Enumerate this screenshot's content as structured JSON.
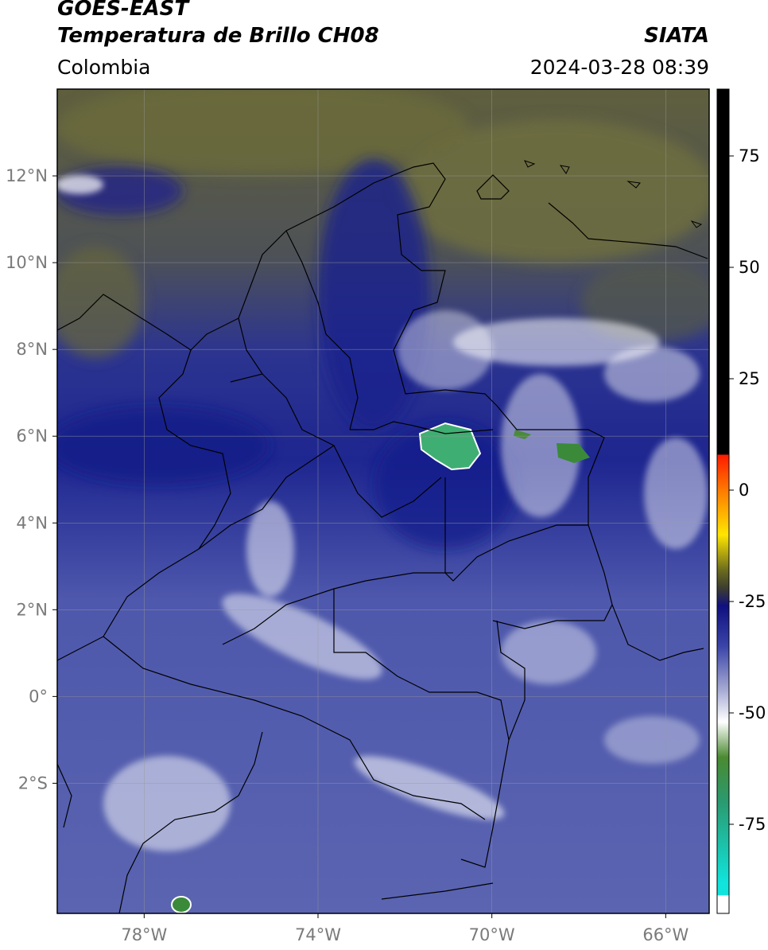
{
  "header": {
    "satellite": "GOES-EAST",
    "product": "Temperatura de Brillo CH08",
    "brand": "SIATA",
    "region": "Colombia",
    "timestamp": "2024-03-28 08:39"
  },
  "map": {
    "lon_range": [
      -80,
      -65
    ],
    "lat_range": [
      -5,
      14
    ],
    "lat_ticks": [
      {
        "value": 12,
        "label": "12°N"
      },
      {
        "value": 10,
        "label": "10°N"
      },
      {
        "value": 8,
        "label": "8°N"
      },
      {
        "value": 6,
        "label": "6°N"
      },
      {
        "value": 4,
        "label": "4°N"
      },
      {
        "value": 2,
        "label": "2°N"
      },
      {
        "value": 0,
        "label": "0°"
      },
      {
        "value": -2,
        "label": "2°S"
      }
    ],
    "lon_ticks": [
      {
        "value": -78,
        "label": "78°W"
      },
      {
        "value": -74,
        "label": "74°W"
      },
      {
        "value": -70,
        "label": "70°W"
      },
      {
        "value": -66,
        "label": "66°W"
      }
    ],
    "grid": true
  },
  "colorbar": {
    "range": [
      -95,
      90
    ],
    "ticks": [
      {
        "value": 75,
        "label": "75"
      },
      {
        "value": 50,
        "label": "50"
      },
      {
        "value": 25,
        "label": "25"
      },
      {
        "value": 0,
        "label": "0"
      },
      {
        "value": -25,
        "label": "-25"
      },
      {
        "value": -50,
        "label": "-50"
      },
      {
        "value": -75,
        "label": "-75"
      }
    ],
    "stops": [
      {
        "value": 90,
        "color": "#000000"
      },
      {
        "value": 8,
        "color": "#000000"
      },
      {
        "value": 7.9,
        "color": "#ff1a00"
      },
      {
        "value": 0,
        "color": "#ff7a00"
      },
      {
        "value": -10,
        "color": "#ffe600"
      },
      {
        "value": -18,
        "color": "#6b6b1e"
      },
      {
        "value": -22,
        "color": "#3c3c30"
      },
      {
        "value": -26,
        "color": "#101080"
      },
      {
        "value": -35,
        "color": "#3a44a8"
      },
      {
        "value": -45,
        "color": "#a8acd4"
      },
      {
        "value": -52,
        "color": "#ffffff"
      },
      {
        "value": -60,
        "color": "#4a8a30"
      },
      {
        "value": -70,
        "color": "#2a9a70"
      },
      {
        "value": -88,
        "color": "#10e4dc"
      },
      {
        "value": -90.9,
        "color": "#10e4dc"
      },
      {
        "value": -91,
        "color": "#ffffff"
      },
      {
        "value": -95,
        "color": "#ffffff"
      }
    ]
  },
  "colors": {
    "cold_cloud": "#ffffff",
    "dry_upper": "#5e5e3a",
    "moist": "#2a2f9a",
    "very_cold": "#3fae6a",
    "border": "#000000"
  }
}
